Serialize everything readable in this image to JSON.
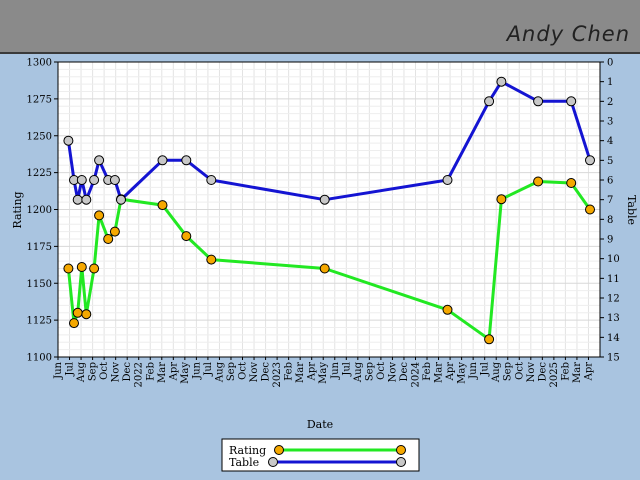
{
  "header": {
    "player_name": "Andy Chen"
  },
  "colors": {
    "rating": "#22e822",
    "table": "#1414d2",
    "rating_marker": "#f5a800",
    "table_marker": "#c8c8c8"
  },
  "chart_data": {
    "type": "line",
    "title": "",
    "xlabel": "Date",
    "ylabel_left": "Rating",
    "ylabel_right": "Table",
    "ylim_left": [
      1100,
      1300
    ],
    "ylim_right": [
      15,
      0
    ],
    "y_ticks_left": [
      "1100",
      "1125",
      "1150",
      "1175",
      "1200",
      "1225",
      "1250",
      "1275",
      "1300"
    ],
    "y_ticks_right": [
      "15",
      "14",
      "13",
      "12",
      "11",
      "10",
      "9",
      "8",
      "7",
      "6",
      "5",
      "4",
      "3",
      "2",
      "1",
      "0"
    ],
    "x_tick_labels": [
      "Jun",
      "Jul",
      "Aug",
      "Sep",
      "Oct",
      "Nov",
      "Dec",
      "2022",
      "Feb",
      "Mar",
      "Apr",
      "May",
      "Jun",
      "Jul",
      "Aug",
      "Sep",
      "Oct",
      "Nov",
      "Dec",
      "2023",
      "Feb",
      "Mar",
      "Apr",
      "May",
      "Jun",
      "Jul",
      "Aug",
      "Sep",
      "Oct",
      "Nov",
      "Dec",
      "2024",
      "Feb",
      "Mar",
      "Apr",
      "May",
      "Jun",
      "Jul",
      "Aug",
      "Sep",
      "Oct",
      "Nov",
      "Dec",
      "2025",
      "Feb",
      "Mar",
      "Apr"
    ],
    "grid": true,
    "legend_position": "bottom-center",
    "series": [
      {
        "name": "Rating",
        "axis": "left",
        "points": [
          [
            "2021-06-28",
            1160
          ],
          [
            "2021-07-13",
            1123
          ],
          [
            "2021-07-23",
            1130
          ],
          [
            "2021-08-03",
            1161
          ],
          [
            "2021-08-15",
            1129
          ],
          [
            "2021-09-05",
            1160
          ],
          [
            "2021-09-18",
            1196
          ],
          [
            "2021-10-12",
            1180
          ],
          [
            "2021-10-30",
            1185
          ],
          [
            "2021-11-15",
            1207
          ],
          [
            "2022-03-03",
            1203
          ],
          [
            "2022-05-05",
            1182
          ],
          [
            "2022-07-10",
            1166
          ],
          [
            "2023-05-05",
            1160
          ],
          [
            "2024-03-25",
            1132
          ],
          [
            "2024-07-13",
            1112
          ],
          [
            "2024-08-15",
            1207
          ],
          [
            "2024-11-20",
            1219
          ],
          [
            "2025-02-15",
            1218
          ],
          [
            "2025-04-05",
            1200
          ]
        ]
      },
      {
        "name": "Table",
        "axis": "right",
        "points": [
          [
            "2021-06-28",
            4
          ],
          [
            "2021-07-13",
            6
          ],
          [
            "2021-07-23",
            7
          ],
          [
            "2021-08-03",
            6
          ],
          [
            "2021-08-15",
            7
          ],
          [
            "2021-09-05",
            6
          ],
          [
            "2021-09-18",
            5
          ],
          [
            "2021-10-12",
            6
          ],
          [
            "2021-10-30",
            6
          ],
          [
            "2021-11-15",
            7
          ],
          [
            "2022-03-03",
            5
          ],
          [
            "2022-05-05",
            5
          ],
          [
            "2022-07-10",
            6
          ],
          [
            "2023-05-05",
            7
          ],
          [
            "2024-03-25",
            6
          ],
          [
            "2024-07-13",
            2
          ],
          [
            "2024-08-15",
            1
          ],
          [
            "2024-11-20",
            2
          ],
          [
            "2025-02-15",
            2
          ],
          [
            "2025-04-05",
            5
          ]
        ]
      }
    ]
  }
}
